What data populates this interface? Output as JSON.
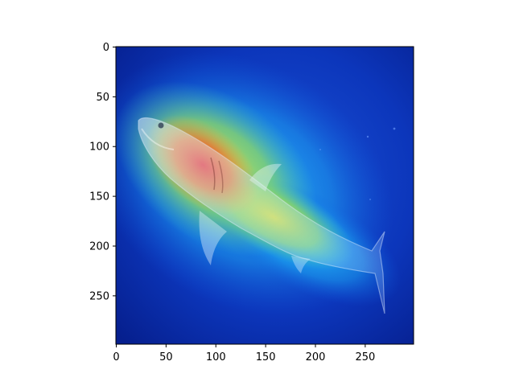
{
  "figure": {
    "background": "#ffffff"
  },
  "image_panel": {
    "subject": "great white shark with saliency heatmap overlay",
    "colormap": "jet",
    "hotspot_color": "#e0302a",
    "background_color": "#0b2fb5"
  },
  "axes": {
    "x_ticks": [
      "0",
      "50",
      "100",
      "150",
      "200",
      "250"
    ],
    "y_ticks": [
      "0",
      "50",
      "100",
      "150",
      "200",
      "250"
    ],
    "x_tick_values": [
      0,
      50,
      100,
      150,
      200,
      250
    ],
    "y_tick_values": [
      0,
      50,
      100,
      150,
      200,
      250
    ],
    "xlim": [
      0,
      299
    ],
    "ylim": [
      299,
      0
    ],
    "grid": false
  }
}
